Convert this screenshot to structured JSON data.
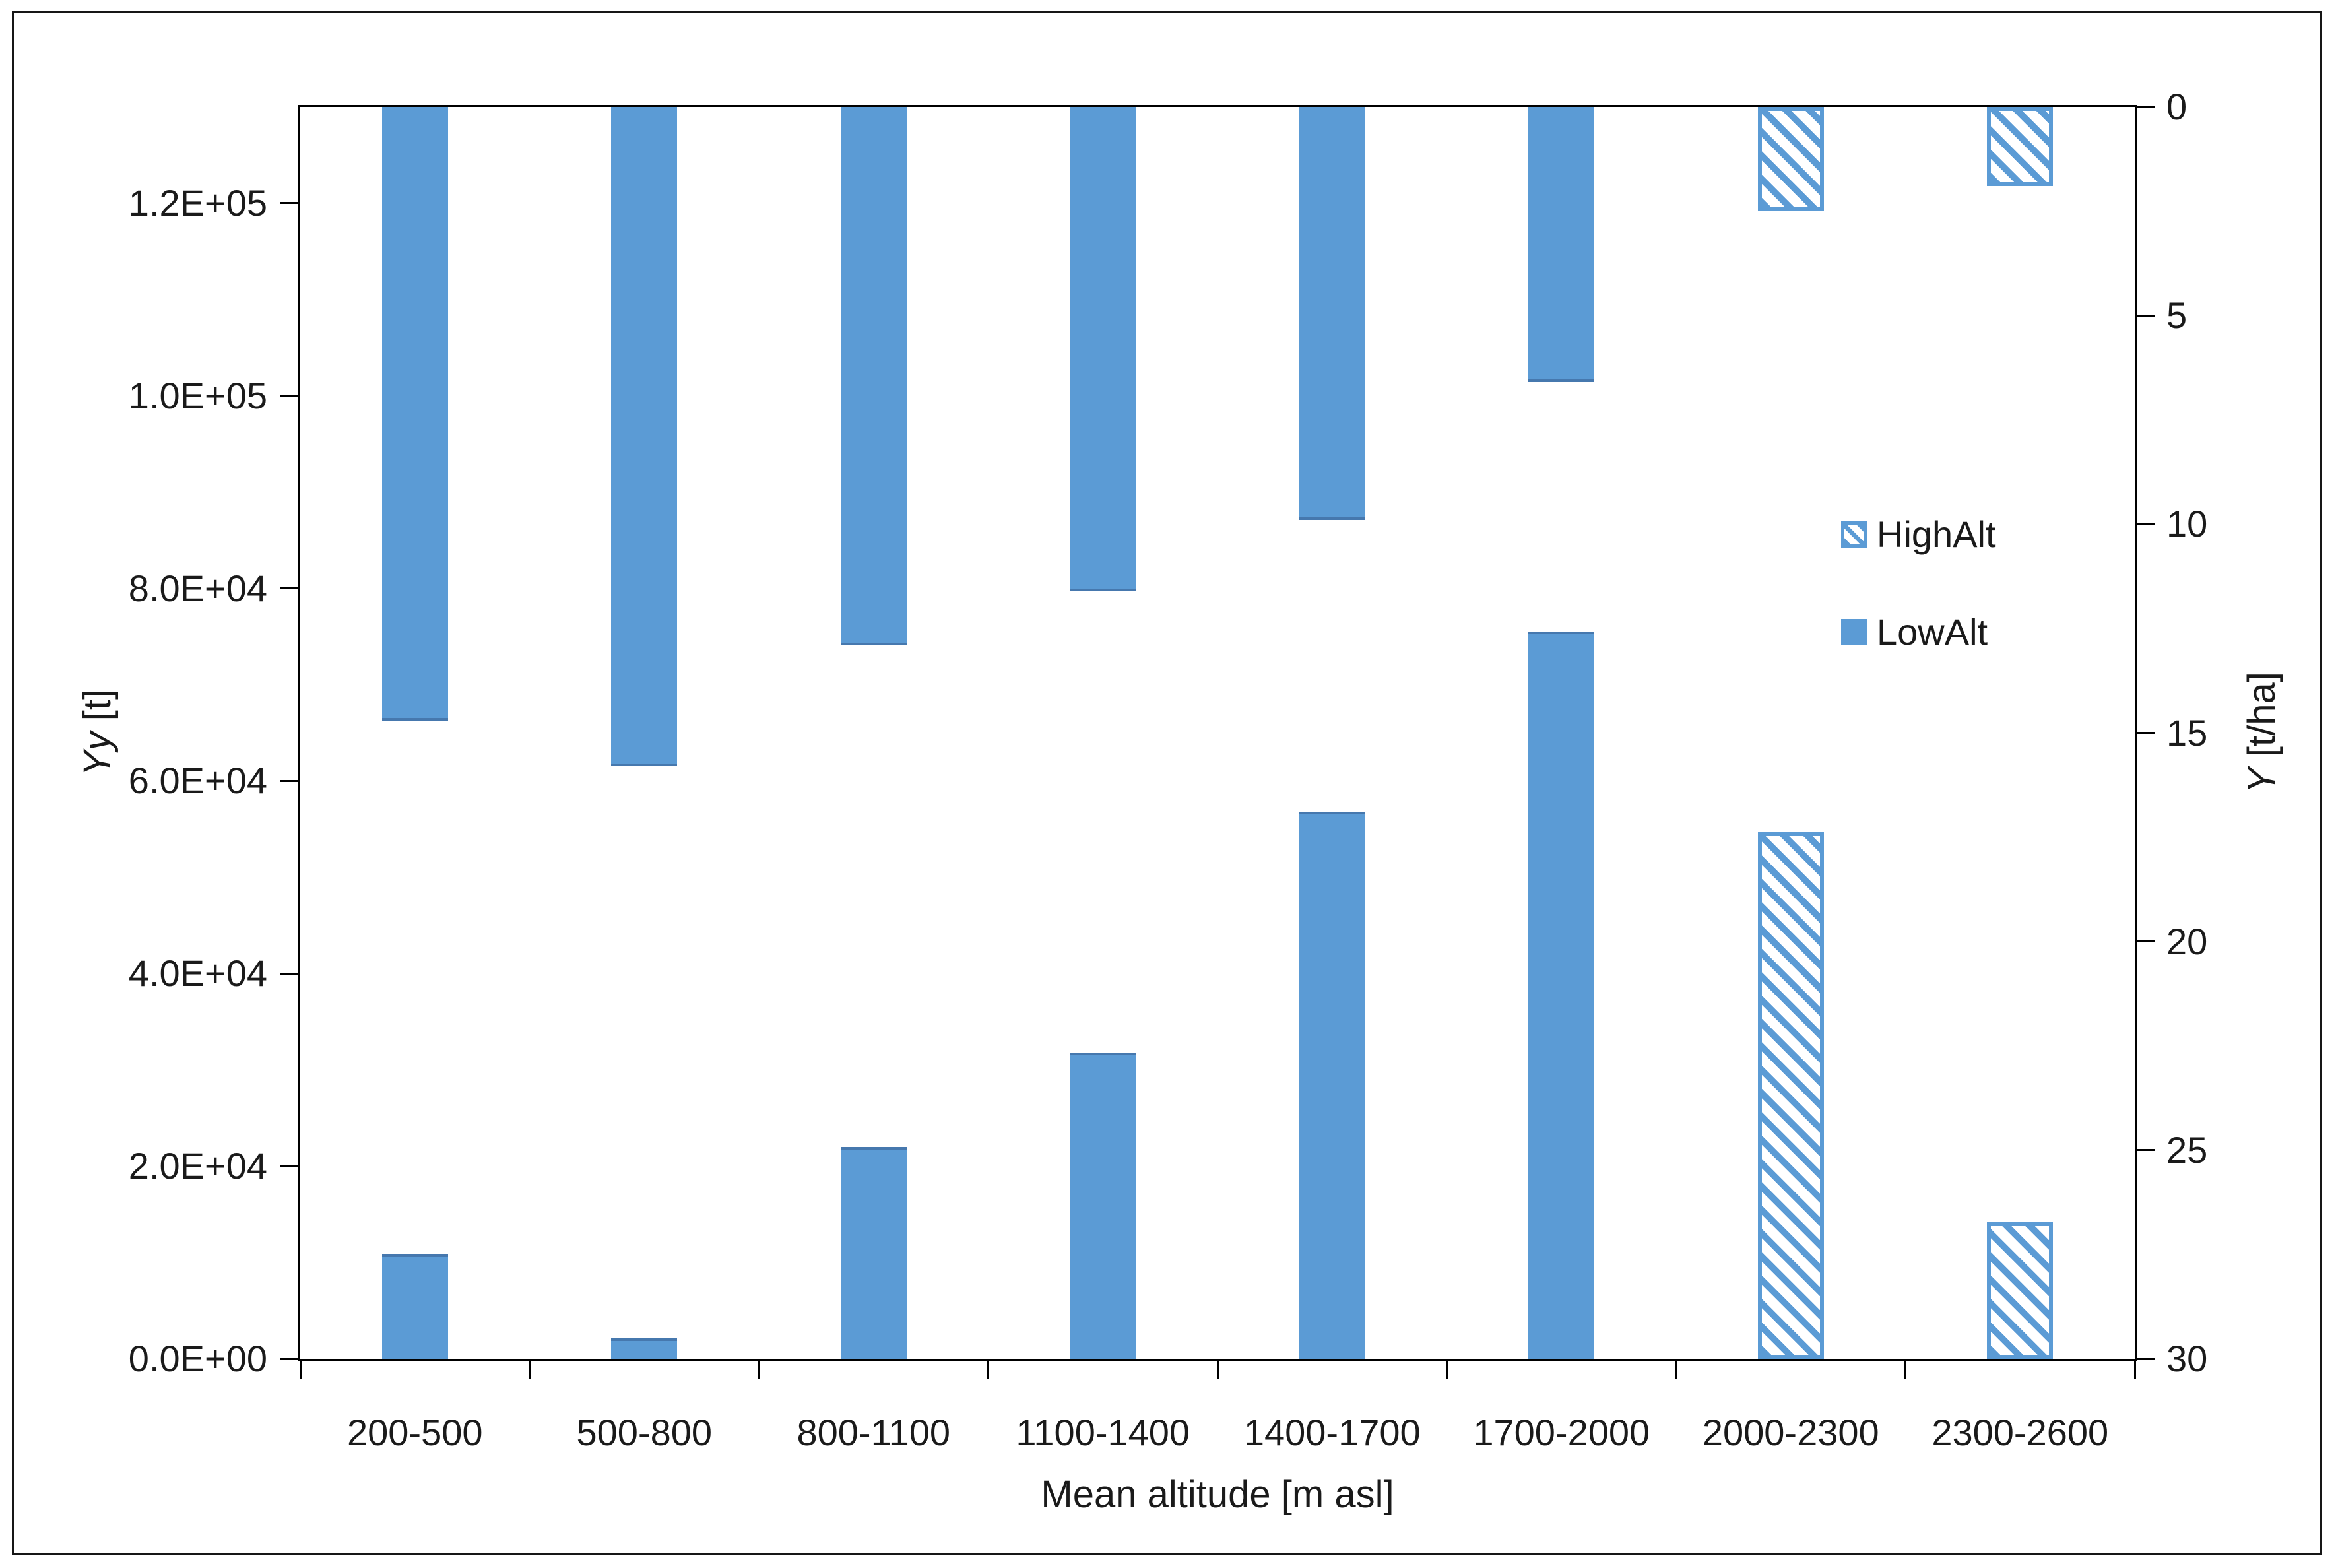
{
  "chart_data": {
    "type": "bar",
    "orientation": "vertical-dual-axis",
    "categories": [
      "200-500",
      "500-800",
      "800-1100",
      "1100-1400",
      "1400-1700",
      "1700-2000",
      "2000-2300",
      "2300-2600"
    ],
    "series": [
      {
        "name": "LowAlt",
        "pattern": "solid",
        "axis": "left",
        "unit": "t",
        "values": [
          10900,
          2100,
          22000,
          31800,
          56800,
          75500,
          null,
          null
        ]
      },
      {
        "name": "HighAlt",
        "pattern": "hatched",
        "axis": "left",
        "unit": "t",
        "values": [
          null,
          null,
          null,
          null,
          null,
          null,
          54700,
          14200
        ]
      },
      {
        "name": "LowAlt",
        "pattern": "solid",
        "axis": "right",
        "unit": "t/ha",
        "values": [
          14.7,
          15.8,
          12.9,
          11.6,
          9.9,
          6.6,
          null,
          null
        ]
      },
      {
        "name": "HighAlt",
        "pattern": "hatched",
        "axis": "right",
        "unit": "t/ha",
        "values": [
          null,
          null,
          null,
          null,
          null,
          null,
          2.5,
          1.9
        ]
      }
    ],
    "left_axis": {
      "title_var": "Yy",
      "title_unit": "[t]",
      "min": 0,
      "max": 130000,
      "tick_values": [
        0,
        20000,
        40000,
        60000,
        80000,
        100000,
        120000
      ],
      "tick_labels": [
        "0.0E+00",
        "2.0E+04",
        "4.0E+04",
        "6.0E+04",
        "8.0E+04",
        "1.0E+05",
        "1.2E+05"
      ]
    },
    "right_axis": {
      "title_var": "Y",
      "title_unit": "[t/ha]",
      "min": 0,
      "max": 30,
      "reversed": true,
      "tick_values": [
        0,
        5,
        10,
        15,
        20,
        25,
        30
      ],
      "tick_labels": [
        "0",
        "5",
        "10",
        "15",
        "20",
        "25",
        "30"
      ]
    },
    "x_axis": {
      "title": "Mean altitude [m asl]"
    },
    "legend": [
      {
        "label": "HighAlt",
        "pattern": "hatched"
      },
      {
        "label": "LowAlt",
        "pattern": "solid"
      }
    ],
    "grid": false,
    "legend_position": "inside-right",
    "colors": {
      "bar_fill": "#5B9BD5",
      "bar_edge": "#4678AE",
      "axis_line": "#000000",
      "text": "#1a1a1a"
    }
  }
}
